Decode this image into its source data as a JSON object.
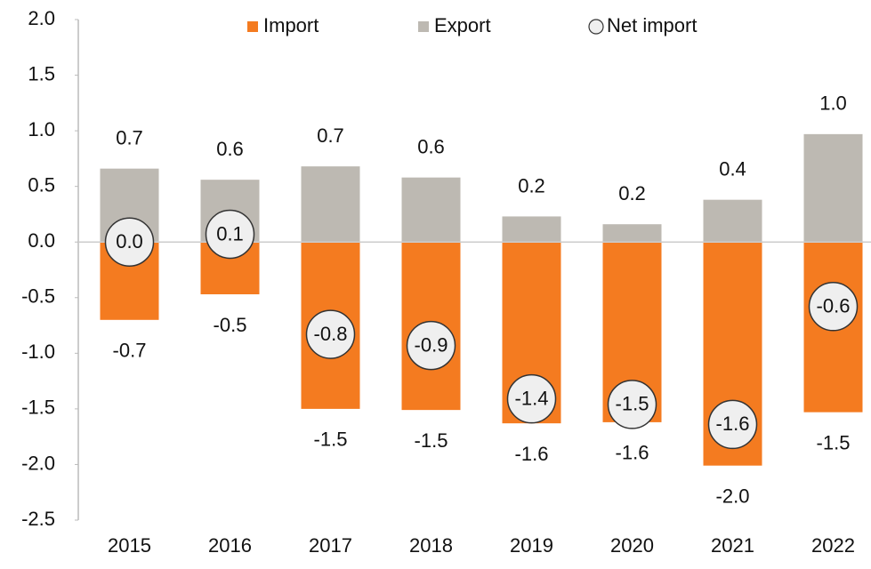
{
  "chart_data": {
    "type": "bar",
    "categories": [
      "2015",
      "2016",
      "2017",
      "2018",
      "2019",
      "2020",
      "2021",
      "2022"
    ],
    "series": [
      {
        "name": "Import",
        "color": "#f47b20",
        "values": [
          -0.7,
          -0.47,
          -1.5,
          -1.51,
          -1.63,
          -1.62,
          -2.01,
          -1.53
        ],
        "value_labels": [
          "-0.7",
          "-0.5",
          "-1.5",
          "-1.5",
          "-1.6",
          "-1.6",
          "-2.0",
          "-1.5"
        ]
      },
      {
        "name": "Export",
        "color": "#bdb9b2",
        "values": [
          0.66,
          0.56,
          0.68,
          0.58,
          0.23,
          0.16,
          0.38,
          0.97
        ],
        "value_labels": [
          "0.7",
          "0.6",
          "0.7",
          "0.6",
          "0.2",
          "0.2",
          "0.4",
          "1.0"
        ]
      },
      {
        "name": "Net import",
        "color": "#efefef",
        "values": [
          0.0,
          0.07,
          -0.83,
          -0.93,
          -1.41,
          -1.46,
          -1.64,
          -0.58
        ],
        "value_labels": [
          "0.0",
          "0.1",
          "-0.8",
          "-0.9",
          "-1.4",
          "-1.5",
          "-1.6",
          "-0.6"
        ]
      }
    ],
    "ylim": [
      -2.5,
      2.0
    ],
    "yticks": [
      {
        "value": 2.0,
        "label": "2.0"
      },
      {
        "value": 1.5,
        "label": "1.5"
      },
      {
        "value": 1.0,
        "label": "1.0"
      },
      {
        "value": 0.5,
        "label": "0.5"
      },
      {
        "value": 0.0,
        "label": "0.0"
      },
      {
        "value": -0.5,
        "label": "-0.5"
      },
      {
        "value": -1.0,
        "label": "-1.0"
      },
      {
        "value": -1.5,
        "label": "-1.5"
      },
      {
        "value": -2.0,
        "label": "-2.0"
      },
      {
        "value": -2.5,
        "label": "-2.5"
      }
    ]
  }
}
